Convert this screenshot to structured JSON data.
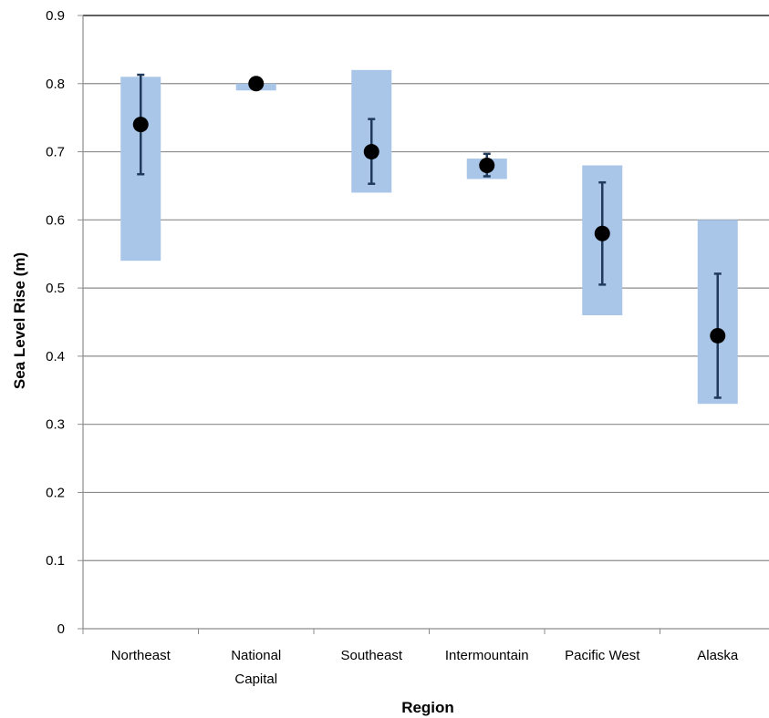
{
  "chart_data": {
    "type": "scatter",
    "title": "",
    "xlabel": "Region",
    "ylabel": "Sea Level Rise (m)",
    "ylim": [
      0,
      0.9
    ],
    "yticks": [
      "0",
      "0.1",
      "0.2",
      "0.3",
      "0.4",
      "0.5",
      "0.6",
      "0.7",
      "0.8",
      "0.9"
    ],
    "grid": true,
    "categories": [
      [
        "Northeast"
      ],
      [
        "National",
        "Capital"
      ],
      [
        "Southeast"
      ],
      [
        "Intermountain"
      ],
      [
        "Pacific West"
      ],
      [
        "Alaska"
      ]
    ],
    "series": [
      {
        "kind": "range_bar",
        "color": "#a9c6e8",
        "low": [
          0.54,
          0.79,
          0.64,
          0.66,
          0.46,
          0.33
        ],
        "high": [
          0.81,
          0.8,
          0.82,
          0.69,
          0.68,
          0.6
        ]
      },
      {
        "kind": "point_with_error",
        "color": "#000000",
        "error_color": "#1f3a5a",
        "values": [
          0.74,
          0.8,
          0.7,
          0.68,
          0.58,
          0.43
        ],
        "err_low": [
          0.667,
          0.8,
          0.653,
          0.664,
          0.505,
          0.339
        ],
        "err_high": [
          0.813,
          0.8,
          0.748,
          0.697,
          0.655,
          0.521
        ]
      }
    ]
  }
}
